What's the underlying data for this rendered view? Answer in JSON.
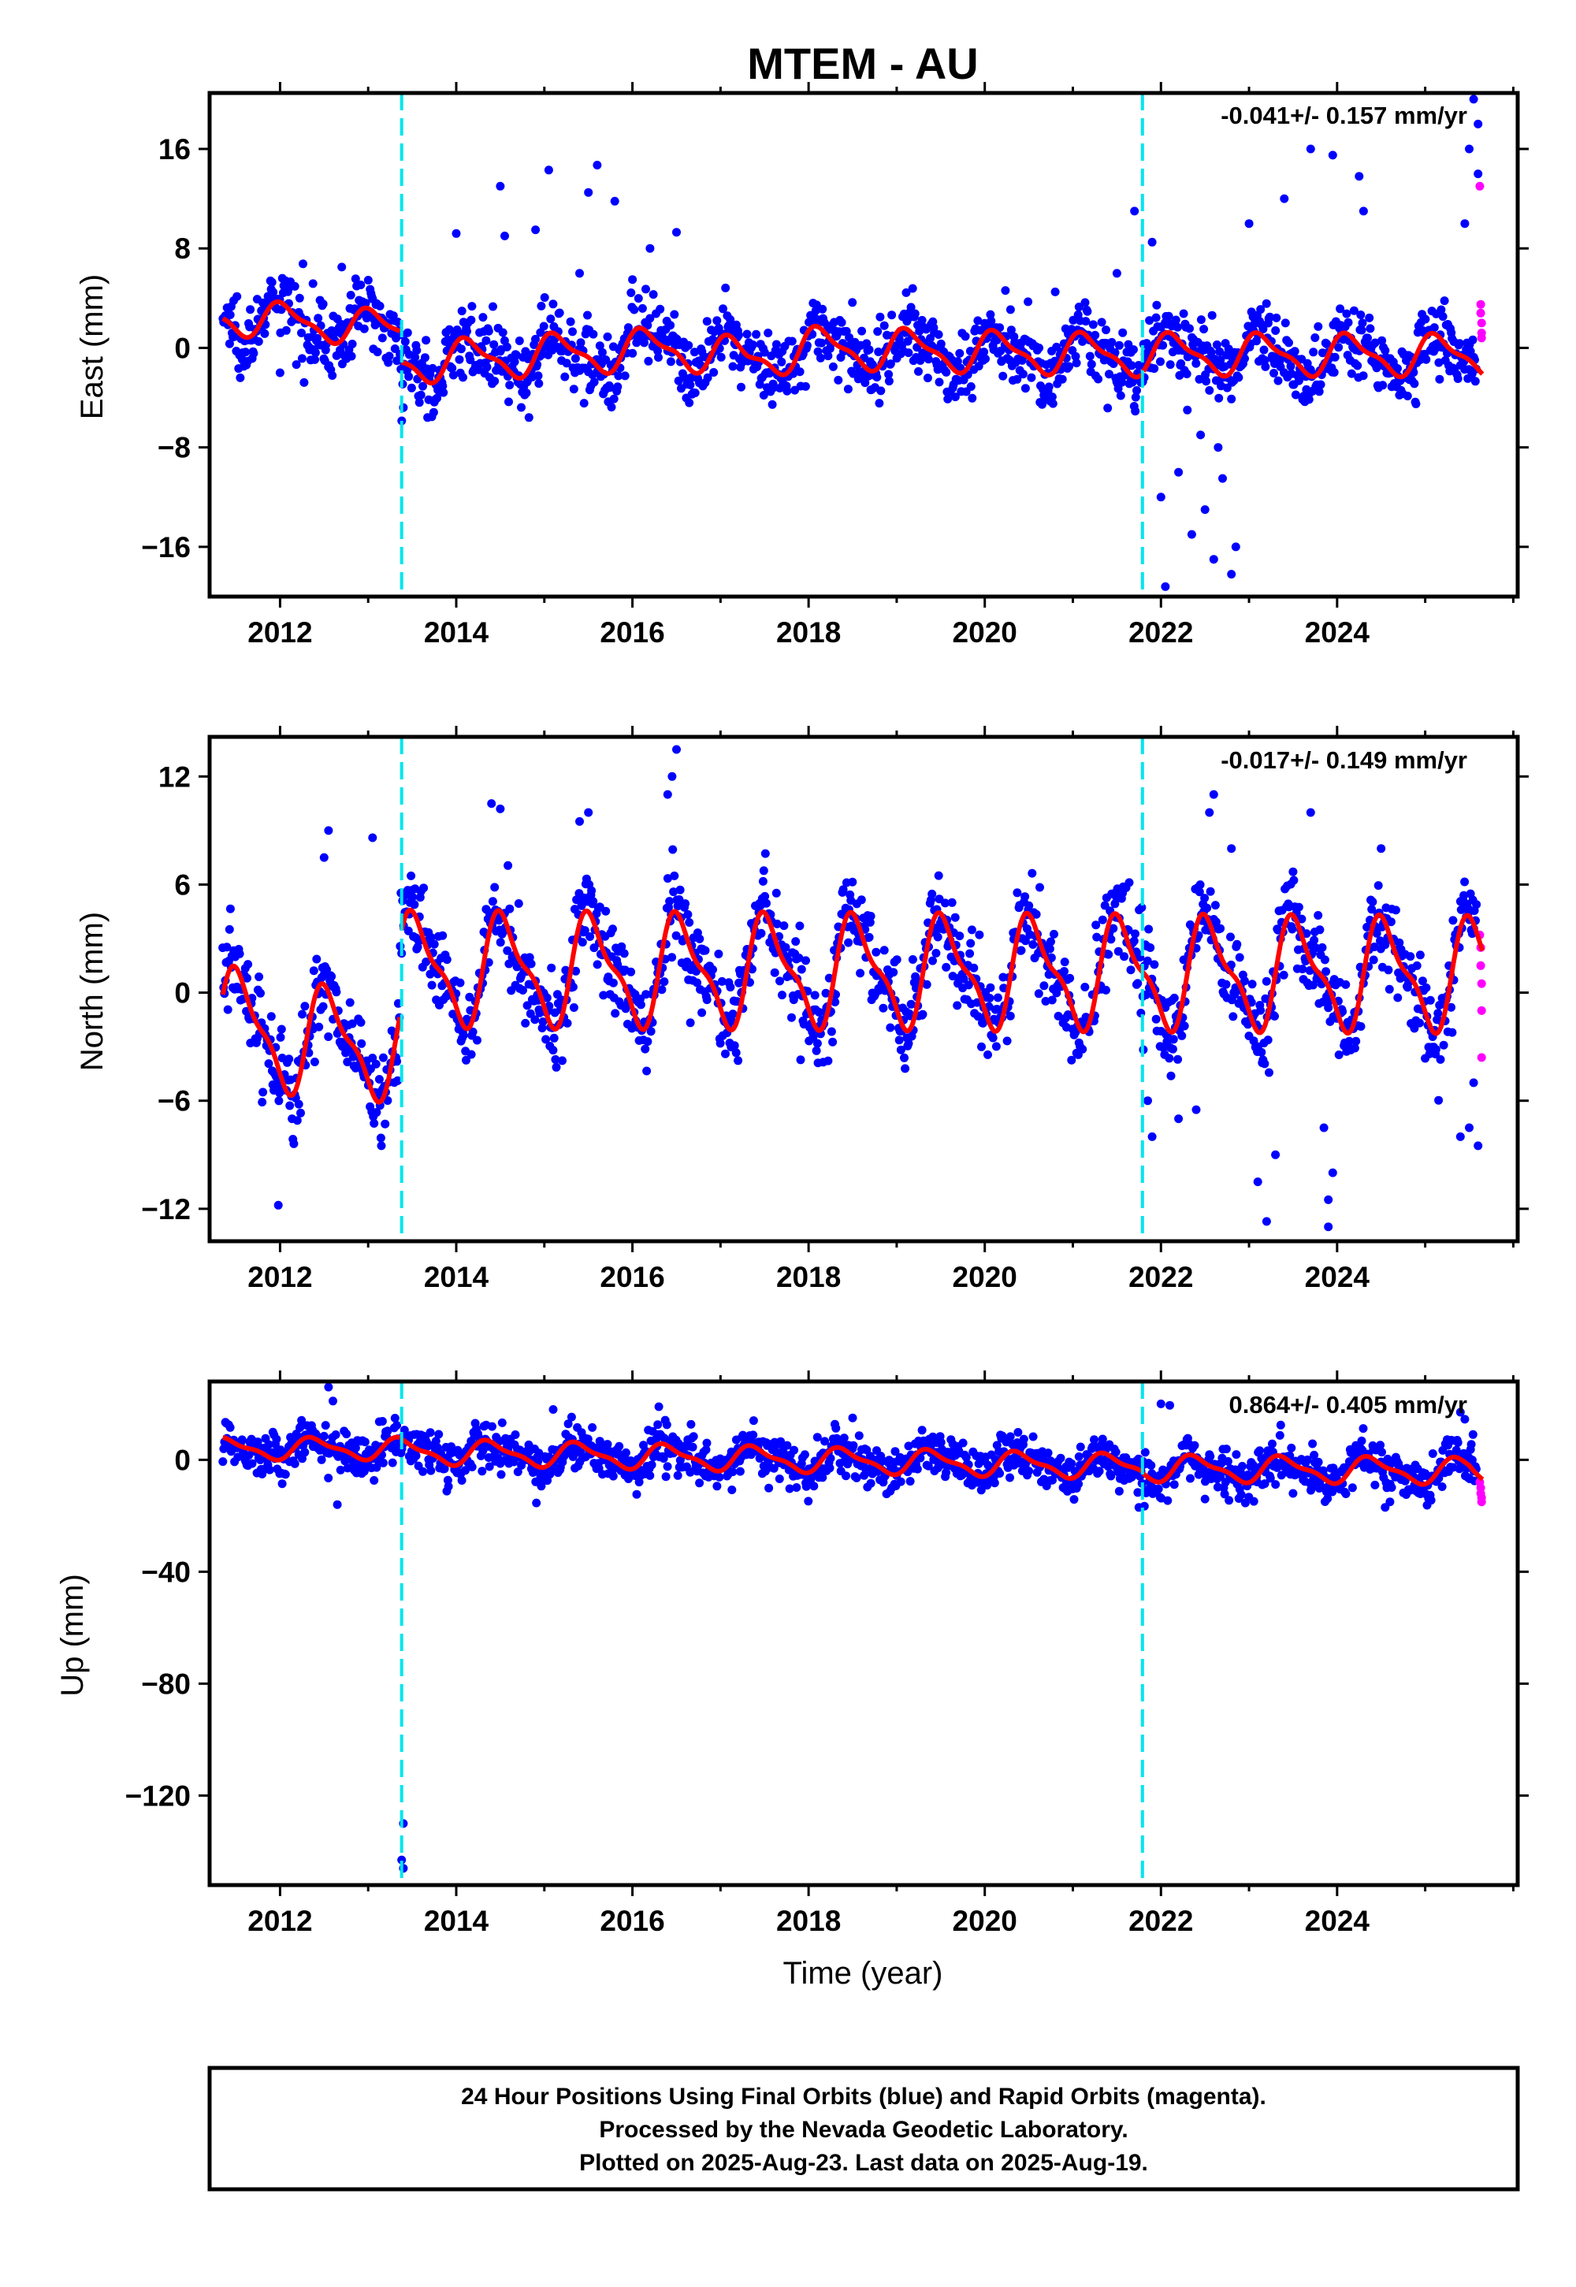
{
  "title": "MTEM - AU",
  "xlabel": "Time (year)",
  "footer": {
    "line1": "24 Hour Positions Using Final Orbits (blue) and Rapid Orbits (magenta).",
    "line2": "Processed by the Nevada Geodetic Laboratory.",
    "line3": "Plotted on 2025-Aug-23. Last data on 2025-Aug-19."
  },
  "colors": {
    "final_orbits": "#0000ff",
    "rapid_orbits": "#ff00ff",
    "model_fit": "#ff0000",
    "equipment_change": "#00e5ee"
  },
  "chart_data": [
    {
      "type": "scatter",
      "panel": "east",
      "ylabel": "East (mm)",
      "rate": "-0.041+/- 0.157 mm/yr",
      "xlim": [
        2011.2,
        2026.05
      ],
      "ylim": [
        -20,
        20.5
      ],
      "xticks": [
        2012,
        2014,
        2016,
        2018,
        2020,
        2022,
        2024
      ],
      "yticks": [
        -16,
        -8,
        0,
        8,
        16
      ],
      "equipment_changes": [
        2013.38,
        2021.79
      ],
      "model": {
        "segments": [
          {
            "x0": 2011.35,
            "x1": 2013.36,
            "baseline": [
              [
                2011.35,
                2.5
              ],
              [
                2013.36,
                1.5
              ]
            ],
            "amp": 1.3,
            "phase": 0.8
          },
          {
            "x0": 2013.38,
            "x1": 2021.78,
            "baseline": [
              [
                2013.38,
                -1.2
              ],
              [
                2016.5,
                0.0
              ],
              [
                2017.3,
                -1.0
              ],
              [
                2018.0,
                0.0
              ],
              [
                2021.78,
                -0.6
              ]
            ],
            "amp": 1.5,
            "phase": 0.9
          },
          {
            "x0": 2021.8,
            "x1": 2025.65,
            "baseline": [
              [
                2021.8,
                -0.5
              ],
              [
                2025.65,
                -0.6
              ]
            ],
            "amp": 1.5,
            "phase": 0.9
          }
        ]
      },
      "final_orbits": {
        "x0": 2011.35,
        "x1": 2025.58,
        "n": 1500,
        "noise": 1.4,
        "outliers": [
          [
            2012.0,
            -2.0
          ],
          [
            2014.5,
            13.0
          ],
          [
            2014.9,
            9.5
          ],
          [
            2015.05,
            14.3
          ],
          [
            2015.5,
            12.5
          ],
          [
            2015.6,
            14.7
          ],
          [
            2015.8,
            11.8
          ],
          [
            2014.0,
            9.2
          ],
          [
            2016.2,
            8.0
          ],
          [
            2016.5,
            9.3
          ],
          [
            2021.7,
            11.0
          ],
          [
            2021.9,
            8.5
          ],
          [
            2022.0,
            -12.0
          ],
          [
            2022.05,
            -19.2
          ],
          [
            2022.2,
            -10.0
          ],
          [
            2022.35,
            -15.0
          ],
          [
            2022.5,
            -13.0
          ],
          [
            2022.6,
            -17.0
          ],
          [
            2022.7,
            -10.5
          ],
          [
            2022.8,
            -18.2
          ],
          [
            2022.85,
            -16.0
          ],
          [
            2022.45,
            -7.0
          ],
          [
            2022.3,
            -5.0
          ],
          [
            2022.65,
            -8.0
          ],
          [
            2023.0,
            10.0
          ],
          [
            2023.4,
            12.0
          ],
          [
            2023.7,
            16.0
          ],
          [
            2023.95,
            15.5
          ],
          [
            2024.3,
            11.0
          ],
          [
            2024.25,
            13.8
          ],
          [
            2025.45,
            10.0
          ],
          [
            2025.55,
            20.0
          ],
          [
            2025.6,
            18.0
          ],
          [
            2025.5,
            16.0
          ],
          [
            2025.6,
            14.0
          ],
          [
            2013.4,
            -4.8
          ],
          [
            2012.7,
            6.5
          ],
          [
            2014.55,
            9.0
          ],
          [
            2015.4,
            6.0
          ],
          [
            2016.0,
            5.5
          ],
          [
            2020.8,
            4.5
          ],
          [
            2021.5,
            6.0
          ]
        ]
      },
      "rapid_orbits": [
        [
          2025.62,
          13.0
        ],
        [
          2025.63,
          3.5
        ],
        [
          2025.63,
          2.8
        ],
        [
          2025.64,
          2.0
        ],
        [
          2025.64,
          1.2
        ],
        [
          2025.64,
          0.8
        ]
      ]
    },
    {
      "type": "scatter",
      "panel": "north",
      "ylabel": "North (mm)",
      "rate": "-0.017+/- 0.149 mm/yr",
      "xlim": [
        2011.2,
        2026.05
      ],
      "ylim": [
        -13.8,
        14.2
      ],
      "xticks": [
        2012,
        2014,
        2016,
        2018,
        2020,
        2022,
        2024
      ],
      "yticks": [
        -12,
        -6,
        0,
        6,
        12
      ],
      "equipment_changes": [
        2013.38,
        2021.79
      ],
      "model": {
        "segments": [
          {
            "x0": 2011.35,
            "x1": 2013.36,
            "baseline": [
              [
                2011.35,
                -1.5
              ],
              [
                2012.0,
                -2.5
              ],
              [
                2013.36,
                -3.0
              ]
            ],
            "amp": 2.7,
            "phase": 0.3
          },
          {
            "x0": 2013.38,
            "x1": 2025.65,
            "baseline": [
              [
                2013.38,
                1.3
              ],
              [
                2025.65,
                1.0
              ]
            ],
            "amp": 2.8,
            "phase": 0.3
          }
        ]
      },
      "final_orbits": {
        "x0": 2011.35,
        "x1": 2025.58,
        "n": 1500,
        "noise": 1.3,
        "outliers": [
          [
            2011.98,
            -11.8
          ],
          [
            2012.55,
            9.0
          ],
          [
            2012.5,
            7.5
          ],
          [
            2013.05,
            8.6
          ],
          [
            2013.15,
            -8.5
          ],
          [
            2014.4,
            10.5
          ],
          [
            2014.5,
            10.2
          ],
          [
            2015.4,
            9.5
          ],
          [
            2015.5,
            10.0
          ],
          [
            2016.5,
            13.5
          ],
          [
            2016.45,
            12.0
          ],
          [
            2016.4,
            11.0
          ],
          [
            2021.9,
            -8.0
          ],
          [
            2021.85,
            -6.0
          ],
          [
            2022.6,
            11.0
          ],
          [
            2022.55,
            10.0
          ],
          [
            2022.8,
            8.0
          ],
          [
            2023.2,
            -12.7
          ],
          [
            2023.1,
            -10.5
          ],
          [
            2023.3,
            -9.0
          ],
          [
            2023.7,
            10.0
          ],
          [
            2023.85,
            -7.5
          ],
          [
            2023.9,
            -13.0
          ],
          [
            2023.95,
            -10.0
          ],
          [
            2023.9,
            -11.5
          ],
          [
            2024.5,
            8.0
          ],
          [
            2025.4,
            -8.0
          ],
          [
            2025.5,
            -7.5
          ],
          [
            2025.6,
            -8.5
          ],
          [
            2025.55,
            -5.0
          ],
          [
            2022.2,
            -7.0
          ],
          [
            2022.4,
            -6.5
          ]
        ]
      },
      "rapid_orbits": [
        [
          2025.62,
          3.2
        ],
        [
          2025.63,
          2.5
        ],
        [
          2025.63,
          1.5
        ],
        [
          2025.64,
          0.5
        ],
        [
          2025.64,
          -1.0
        ],
        [
          2025.64,
          -3.6
        ]
      ]
    },
    {
      "type": "scatter",
      "panel": "up",
      "ylabel": "Up (mm)",
      "rate": "0.864+/- 0.405 mm/yr",
      "xlim": [
        2011.2,
        2026.05
      ],
      "ylim": [
        -152,
        28
      ],
      "xticks": [
        2012,
        2014,
        2016,
        2018,
        2020,
        2022,
        2024
      ],
      "yticks": [
        -120,
        -80,
        -40,
        0
      ],
      "equipment_changes": [
        2013.38,
        2021.79
      ],
      "model": {
        "segments": [
          {
            "x0": 2011.35,
            "x1": 2013.36,
            "baseline": [
              [
                2011.35,
                4.0
              ],
              [
                2013.36,
                4.0
              ]
            ],
            "amp": 3.5,
            "phase": 0.15
          },
          {
            "x0": 2013.38,
            "x1": 2021.78,
            "baseline": [
              [
                2013.38,
                3.0
              ],
              [
                2021.78,
                -2.5
              ]
            ],
            "amp": 4.0,
            "phase": 0.15
          },
          {
            "x0": 2021.8,
            "x1": 2025.65,
            "baseline": [
              [
                2021.8,
                -3.0
              ],
              [
                2025.5,
                -4.0
              ],
              [
                2025.65,
                -7.0
              ]
            ],
            "amp": 4.2,
            "phase": 0.15
          }
        ]
      },
      "final_orbits": {
        "x0": 2011.35,
        "x1": 2025.58,
        "n": 1500,
        "noise": 4.0,
        "outliers": [
          [
            2012.55,
            26.0
          ],
          [
            2012.6,
            21.0
          ],
          [
            2012.65,
            -16.0
          ],
          [
            2013.4,
            -130.0
          ],
          [
            2013.4,
            -146.0
          ],
          [
            2013.38,
            -143.0
          ],
          [
            2015.1,
            18.0
          ],
          [
            2016.3,
            19.0
          ],
          [
            2018.5,
            15.0
          ],
          [
            2021.75,
            -17.0
          ],
          [
            2022.0,
            20.0
          ],
          [
            2022.1,
            19.5
          ],
          [
            2022.5,
            -14.0
          ],
          [
            2023.5,
            -12.0
          ],
          [
            2024.6,
            -15.0
          ],
          [
            2025.4,
            17.0
          ],
          [
            2025.45,
            14.5
          ]
        ]
      },
      "rapid_orbits": [
        [
          2025.62,
          -8.0
        ],
        [
          2025.63,
          -10.0
        ],
        [
          2025.63,
          -12.0
        ],
        [
          2025.64,
          -13.5
        ],
        [
          2025.64,
          -15.0
        ]
      ]
    }
  ]
}
